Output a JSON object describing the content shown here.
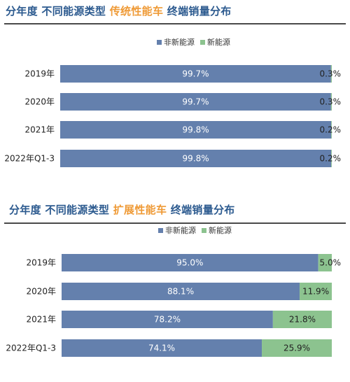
{
  "colors": {
    "non_new_energy": "#6480ad",
    "new_energy": "#8cc38f",
    "title_main": "#2c5a8f",
    "title_highlight": "#ef9a36"
  },
  "chart_data": [
    {
      "type": "bar",
      "orientation": "horizontal",
      "stacked": true,
      "percent": true,
      "title_parts": [
        "分年度 不同能源类型 ",
        "传统性能车",
        " 终端销量分布"
      ],
      "legend": [
        "非新能源",
        "新能源"
      ],
      "legend_position": "top-center",
      "categories": [
        "2019年",
        "2020年",
        "2021年",
        "2022年Q1-3"
      ],
      "series": [
        {
          "name": "非新能源",
          "values": [
            99.7,
            99.7,
            99.8,
            99.8
          ],
          "labels": [
            "99.7%",
            "99.7%",
            "99.8%",
            "99.8%"
          ]
        },
        {
          "name": "新能源",
          "values": [
            0.3,
            0.3,
            0.2,
            0.2
          ],
          "labels": [
            "0.3%",
            "0.3%",
            "0.2%",
            "0.2%"
          ]
        }
      ],
      "xlim": [
        0,
        100
      ],
      "grid": false
    },
    {
      "type": "bar",
      "orientation": "horizontal",
      "stacked": true,
      "percent": true,
      "title_parts": [
        "分年度 不同能源类型 ",
        "扩展性能车",
        " 终端销量分布"
      ],
      "legend": [
        "非新能源",
        "新能源"
      ],
      "legend_position": "top-center",
      "categories": [
        "2019年",
        "2020年",
        "2021年",
        "2022年Q1-3"
      ],
      "series": [
        {
          "name": "非新能源",
          "values": [
            95.0,
            88.1,
            78.2,
            74.1
          ],
          "labels": [
            "95.0%",
            "88.1%",
            "78.2%",
            "74.1%"
          ]
        },
        {
          "name": "新能源",
          "values": [
            5.0,
            11.9,
            21.8,
            25.9
          ],
          "labels": [
            "5.0%",
            "11.9%",
            "21.8%",
            "25.9%"
          ]
        }
      ],
      "xlim": [
        0,
        100
      ],
      "grid": false
    }
  ]
}
